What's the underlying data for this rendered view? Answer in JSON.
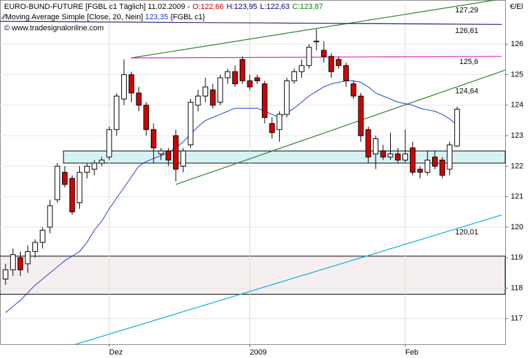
{
  "chart_data": {
    "type": "candlestick",
    "title": "EURO-BUND-FUTURE [FGBL c1  Täglich] 11.02.2009 -",
    "ohlc_labels": [
      {
        "text": "O:122,66",
        "color": "#c00000"
      },
      {
        "text": "H:123,95",
        "color": "#000080"
      },
      {
        "text": "L:122,63",
        "color": "#000080"
      },
      {
        "text": "C:123,87",
        "color": "#008000"
      }
    ],
    "indicator_name": "Moving Average Simple [Close, 20, Nein]",
    "indicator_value": "123,35",
    "indicator_source": "{FGBL c1}",
    "copyright": "© www.tradesignalonline.com",
    "unit": "€/El",
    "categories": [
      null,
      null,
      null,
      null,
      null,
      null,
      null,
      null,
      null,
      null,
      null,
      null,
      null,
      null,
      "Dez",
      null,
      null,
      null,
      null,
      null,
      null,
      null,
      null,
      null,
      null,
      null,
      null,
      null,
      null,
      null,
      null,
      null,
      null,
      "2009",
      null,
      null,
      null,
      null,
      null,
      null,
      null,
      null,
      null,
      null,
      null,
      null,
      null,
      null,
      null,
      null,
      null,
      null,
      null,
      null,
      "Feb",
      null,
      null,
      null,
      null,
      null,
      null,
      null
    ],
    "open": [
      118.3,
      118.6,
      119.0,
      118.8,
      119.2,
      119.5,
      120.0,
      120.9,
      121.8,
      121.6,
      120.8,
      121.8,
      121.9,
      122.1,
      122.3,
      123.2,
      124.2,
      125.0,
      124.4,
      124.0,
      123.2,
      122.4,
      122.5,
      123.0,
      122.0,
      122.7,
      124.0,
      124.3,
      124.5,
      124.1,
      124.9,
      125.1,
      125.5,
      124.8,
      124.9,
      124.7,
      123.4,
      123.2,
      123.7,
      124.8,
      125.1,
      125.3,
      126.1,
      125.8,
      125.6,
      125.5,
      125.3,
      124.7,
      124.3,
      123.2,
      122.4,
      122.5,
      122.3,
      122.4,
      122.2,
      122.6,
      121.9,
      121.8,
      122.3,
      122.2,
      121.9,
      122.66
    ],
    "high": [
      118.8,
      119.3,
      119.2,
      119.4,
      119.6,
      120.0,
      120.9,
      122.1,
      122.0,
      121.7,
      122.0,
      122.1,
      122.2,
      122.3,
      123.3,
      124.4,
      125.5,
      125.1,
      124.6,
      124.1,
      123.4,
      122.6,
      122.6,
      123.2,
      122.6,
      124.2,
      124.5,
      124.9,
      124.7,
      125.0,
      125.2,
      125.3,
      125.6,
      125.0,
      125.0,
      124.8,
      123.6,
      123.8,
      124.9,
      125.2,
      125.5,
      126.0,
      126.5,
      126.1,
      125.7,
      125.6,
      125.4,
      124.8,
      124.4,
      123.3,
      123.0,
      122.7,
      123.1,
      122.6,
      123.2,
      122.8,
      122.0,
      122.5,
      122.5,
      122.3,
      122.8,
      123.95
    ],
    "low": [
      118.1,
      118.4,
      118.4,
      118.5,
      119.0,
      119.3,
      119.8,
      120.8,
      121.3,
      120.4,
      120.6,
      121.6,
      121.7,
      122.0,
      122.2,
      123.0,
      124.0,
      124.1,
      123.8,
      123.0,
      122.1,
      122.2,
      122.0,
      121.5,
      121.8,
      122.6,
      123.8,
      124.1,
      123.9,
      124.0,
      124.7,
      124.6,
      124.7,
      124.5,
      124.7,
      123.4,
      122.9,
      122.8,
      123.6,
      124.7,
      124.9,
      125.2,
      125.8,
      125.4,
      124.9,
      125.2,
      124.6,
      124.2,
      122.8,
      122.1,
      121.9,
      122.2,
      122.2,
      122.1,
      122.1,
      121.7,
      121.6,
      121.7,
      121.9,
      121.6,
      121.7,
      122.63
    ],
    "close": [
      118.6,
      119.1,
      118.6,
      119.2,
      119.5,
      119.9,
      120.7,
      122.0,
      121.4,
      120.5,
      121.8,
      122.0,
      122.1,
      122.2,
      123.2,
      124.3,
      125.0,
      124.4,
      124.0,
      123.2,
      122.6,
      122.5,
      122.2,
      121.9,
      122.5,
      124.1,
      124.3,
      124.6,
      124.0,
      124.9,
      125.1,
      124.7,
      124.8,
      124.6,
      124.8,
      123.6,
      123.1,
      123.7,
      124.8,
      125.1,
      125.3,
      125.9,
      126.1,
      125.6,
      125.1,
      125.3,
      124.8,
      124.3,
      123.0,
      122.3,
      122.9,
      122.3,
      122.4,
      122.2,
      122.4,
      121.8,
      121.8,
      122.2,
      122.0,
      121.7,
      122.7,
      123.87
    ],
    "colors": {
      "up": "#ffffff",
      "down": "#d40000"
    },
    "moving_average": {
      "color": "#1a3ccc",
      "values": [
        117.2,
        117.4,
        117.6,
        117.85,
        118.1,
        118.3,
        118.5,
        118.7,
        118.9,
        119.05,
        119.2,
        119.5,
        119.9,
        120.2,
        120.6,
        120.95,
        121.3,
        121.65,
        122.0,
        122.15,
        122.25,
        122.35,
        122.45,
        122.6,
        122.8,
        123.05,
        123.3,
        123.5,
        123.6,
        123.7,
        123.8,
        123.9,
        123.9,
        123.9,
        123.9,
        123.8,
        123.7,
        123.6,
        123.75,
        123.9,
        124.1,
        124.3,
        124.45,
        124.6,
        124.7,
        124.75,
        124.8,
        124.8,
        124.75,
        124.6,
        124.4,
        124.3,
        124.2,
        124.1,
        124.05,
        124.0,
        123.9,
        123.85,
        123.8,
        123.7,
        123.55,
        123.35
      ]
    },
    "ylim": [
      116.16,
      127.45
    ],
    "xlim": [
      -0.75,
      67.5
    ],
    "yticks": [
      117,
      118,
      119,
      120,
      121,
      122,
      123,
      124,
      125,
      126
    ],
    "grid": true,
    "zones": [
      {
        "ylim": [
          117.8,
          119.05
        ],
        "xlim": [
          -0.75,
          67.5
        ],
        "color": "#f6efef"
      },
      {
        "ylim": [
          122.1,
          122.5
        ],
        "xlim": [
          7.82,
          67.5
        ],
        "color": "#d6f3f3"
      }
    ],
    "lines": [
      {
        "x": [
          16.95,
          67.5
        ],
        "y": [
          125.55,
          127.5
        ],
        "color": "#2e7d2e",
        "level": {
          "value": 127.29,
          "label": "127,29"
        }
      },
      {
        "x": [
          -0.75,
          67.04
        ],
        "y": [
          126.75,
          126.65
        ],
        "color": "#1a237e",
        "level": {
          "value": 126.61,
          "label": "126,61"
        }
      },
      {
        "x": [
          16.95,
          67.04
        ],
        "y": [
          125.55,
          125.6
        ],
        "color": "#e020c0",
        "level": {
          "value": 125.6,
          "label": "125,6"
        }
      },
      {
        "x": [
          23,
          67.5
        ],
        "y": [
          121.4,
          125.15
        ],
        "color": "#2e7d2e",
        "level": {
          "value": 124.64,
          "label": "124,64"
        }
      },
      {
        "x": [
          9.5,
          67.04
        ],
        "y": [
          116.16,
          120.4
        ],
        "color": "#00b0e0",
        "level": {
          "value": 120.01,
          "label": "120,01"
        }
      }
    ]
  }
}
